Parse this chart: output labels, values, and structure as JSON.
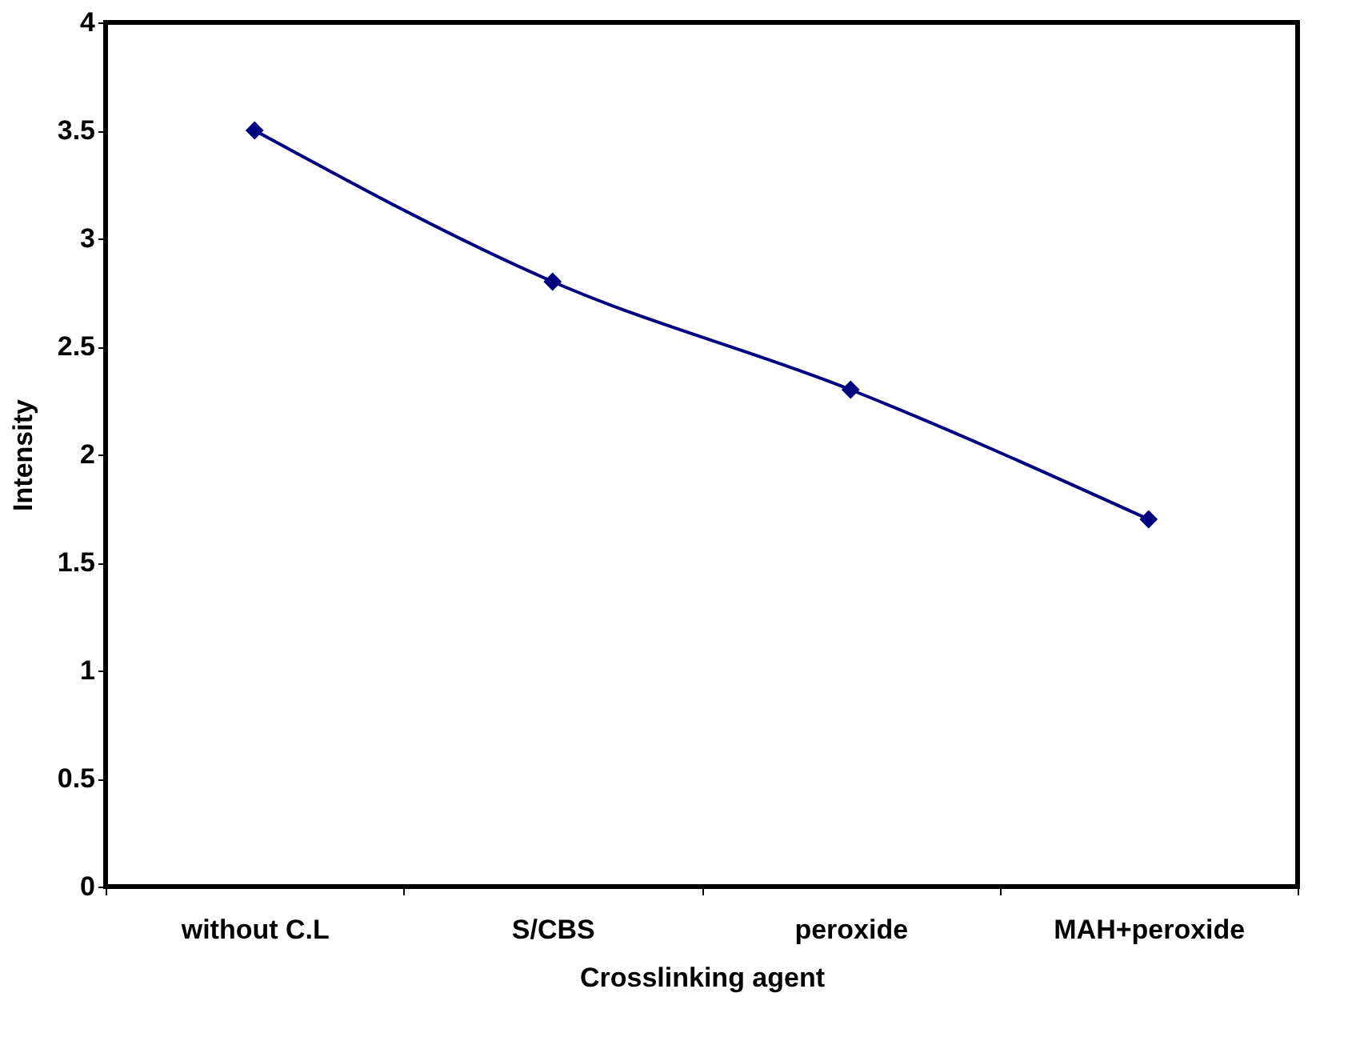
{
  "chart_data": {
    "type": "line",
    "xlabel": "Crosslinking agent",
    "ylabel": "Intensity",
    "categories": [
      "without C.L",
      "S/CBS",
      "peroxide",
      "MAH+peroxide"
    ],
    "series": [
      {
        "color": "#000080",
        "values": [
          3.5,
          2.8,
          2.3,
          1.7
        ]
      }
    ],
    "ylim": [
      0,
      4
    ],
    "yticks": [
      0,
      0.5,
      1,
      1.5,
      2,
      2.5,
      3,
      3.5,
      4
    ],
    "grid": false,
    "marker": "diamond",
    "line_style": "solid"
  }
}
